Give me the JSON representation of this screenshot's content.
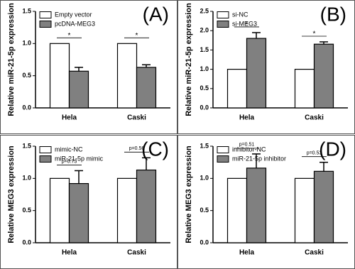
{
  "chart_data": [
    {
      "type": "bar",
      "panel": "(A)",
      "y_label": "Relative miR-21-5p expression",
      "categories": [
        "Hela",
        "Caski"
      ],
      "series": [
        {
          "name": "Empty vector",
          "color": "#ffffff",
          "values": [
            1.0,
            1.0
          ]
        },
        {
          "name": "pcDNA-MEG3",
          "color": "#808080",
          "values": [
            0.57,
            0.63
          ],
          "errors": [
            0.06,
            0.04
          ]
        }
      ],
      "significance": [
        "*",
        "*"
      ],
      "ylim": [
        0,
        1.5
      ],
      "yticks": [
        {
          "value": 0,
          "label": "0.0"
        },
        {
          "value": 0.5,
          "label": "0.5"
        },
        {
          "value": 1,
          "label": "1.0"
        },
        {
          "value": 1.5,
          "label": "1.5"
        }
      ]
    },
    {
      "type": "bar",
      "panel": "(B)",
      "y_label": "Relative miR-21-5p expression",
      "categories": [
        "Hela",
        "Caski"
      ],
      "series": [
        {
          "name": "si-NC",
          "color": "#ffffff",
          "values": [
            1.0,
            1.0
          ]
        },
        {
          "name": "si-MEG3",
          "color": "#808080",
          "values": [
            1.8,
            1.65
          ],
          "errors": [
            0.15,
            0.06
          ]
        }
      ],
      "significance": [
        "*",
        "*"
      ],
      "ylim": [
        0,
        2.5
      ],
      "yticks": [
        {
          "value": 0,
          "label": "0.0"
        },
        {
          "value": 0.5,
          "label": "0.5"
        },
        {
          "value": 1,
          "label": "1.0"
        },
        {
          "value": 1.5,
          "label": "1.5"
        },
        {
          "value": 2,
          "label": "2.0"
        },
        {
          "value": 2.5,
          "label": "2.5"
        }
      ]
    },
    {
      "type": "bar",
      "panel": "(C)",
      "y_label": "Relative MEG3 expression",
      "categories": [
        "Hela",
        "Caski"
      ],
      "series": [
        {
          "name": "mimic-NC",
          "color": "#ffffff",
          "values": [
            1.0,
            1.0
          ]
        },
        {
          "name": "miR-21-5p mimic",
          "color": "#808080",
          "values": [
            0.92,
            1.13
          ],
          "errors": [
            0.2,
            0.19
          ]
        }
      ],
      "significance": [
        "p=0.73",
        "p=0.56"
      ],
      "ylim": [
        0,
        1.5
      ],
      "yticks": [
        {
          "value": 0,
          "label": "0.0"
        },
        {
          "value": 0.5,
          "label": "0.5"
        },
        {
          "value": 1,
          "label": "1.0"
        },
        {
          "value": 1.5,
          "label": "1.5"
        }
      ]
    },
    {
      "type": "bar",
      "panel": "(D)",
      "y_label": "Relative MEG3 expression",
      "categories": [
        "Hela",
        "Caski"
      ],
      "series": [
        {
          "name": "inhibitor-NC",
          "color": "#ffffff",
          "values": [
            1.0,
            1.0
          ]
        },
        {
          "name": "miR-21-5p inhibitor",
          "color": "#808080",
          "values": [
            1.16,
            1.11
          ],
          "errors": [
            0.22,
            0.14
          ]
        }
      ],
      "significance": [
        "p=0.51",
        "p=0.53"
      ],
      "ylim": [
        0,
        1.5
      ],
      "yticks": [
        {
          "value": 0,
          "label": "0.0"
        },
        {
          "value": 0.5,
          "label": "0.5"
        },
        {
          "value": 1,
          "label": "1.0"
        },
        {
          "value": 1.5,
          "label": "1.5"
        }
      ]
    }
  ]
}
